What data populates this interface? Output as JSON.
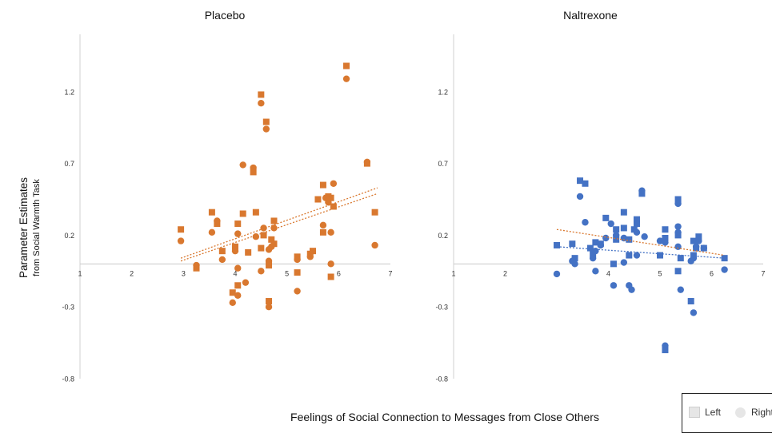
{
  "chart_data": [
    {
      "type": "scatter",
      "title": "Placebo",
      "x_ticks": [
        "1",
        "2",
        "3",
        "4",
        "5",
        "6",
        "7"
      ],
      "y_ticks": [
        "1.2",
        "0.7",
        "0.2",
        "-0.3",
        "-0.8"
      ],
      "xlim": [
        1,
        7
      ],
      "ylim": [
        -0.8,
        1.6
      ],
      "series": [
        {
          "marker": "square",
          "color": "#d9782f",
          "points": [
            [
              2.95,
              0.24
            ],
            [
              3.25,
              -0.03
            ],
            [
              3.55,
              0.36
            ],
            [
              3.65,
              0.28
            ],
            [
              3.75,
              0.09
            ],
            [
              3.95,
              -0.2
            ],
            [
              4.0,
              0.12
            ],
            [
              4.05,
              0.28
            ],
            [
              4.05,
              -0.15
            ],
            [
              4.15,
              0.35
            ],
            [
              4.25,
              0.08
            ],
            [
              4.35,
              0.64
            ],
            [
              4.4,
              0.36
            ],
            [
              4.5,
              1.18
            ],
            [
              4.5,
              0.11
            ],
            [
              4.55,
              0.2
            ],
            [
              4.6,
              0.99
            ],
            [
              4.65,
              -0.26
            ],
            [
              4.65,
              -0.01
            ],
            [
              4.7,
              0.17
            ],
            [
              4.75,
              0.14
            ],
            [
              4.75,
              0.3
            ],
            [
              5.2,
              0.05
            ],
            [
              5.2,
              -0.06
            ],
            [
              5.45,
              0.07
            ],
            [
              5.5,
              0.09
            ],
            [
              5.6,
              0.45
            ],
            [
              5.7,
              0.55
            ],
            [
              5.7,
              0.22
            ],
            [
              5.8,
              0.47
            ],
            [
              5.85,
              0.46
            ],
            [
              5.85,
              -0.09
            ],
            [
              5.9,
              0.4
            ],
            [
              6.15,
              1.38
            ],
            [
              6.55,
              0.7
            ],
            [
              6.7,
              0.36
            ]
          ]
        },
        {
          "marker": "circle",
          "color": "#d9782f",
          "points": [
            [
              2.95,
              0.16
            ],
            [
              3.25,
              -0.01
            ],
            [
              3.55,
              0.22
            ],
            [
              3.65,
              0.3
            ],
            [
              3.75,
              0.03
            ],
            [
              3.95,
              -0.27
            ],
            [
              4.0,
              0.09
            ],
            [
              4.05,
              0.21
            ],
            [
              4.05,
              -0.22
            ],
            [
              4.15,
              0.69
            ],
            [
              4.05,
              -0.03
            ],
            [
              4.2,
              -0.13
            ],
            [
              4.35,
              0.67
            ],
            [
              4.4,
              0.19
            ],
            [
              4.5,
              1.12
            ],
            [
              4.5,
              -0.05
            ],
            [
              4.55,
              0.25
            ],
            [
              4.6,
              0.94
            ],
            [
              4.65,
              -0.3
            ],
            [
              4.65,
              0.1
            ],
            [
              4.7,
              0.12
            ],
            [
              4.75,
              0.25
            ],
            [
              4.65,
              0.02
            ],
            [
              5.2,
              0.03
            ],
            [
              5.2,
              -0.19
            ],
            [
              5.45,
              0.05
            ],
            [
              5.7,
              0.27
            ],
            [
              5.75,
              0.46
            ],
            [
              5.8,
              0.43
            ],
            [
              5.85,
              0.22
            ],
            [
              5.9,
              0.56
            ],
            [
              5.85,
              0.0
            ],
            [
              6.15,
              1.29
            ],
            [
              6.55,
              0.71
            ],
            [
              6.7,
              0.13
            ]
          ]
        }
      ],
      "trendlines": [
        {
          "from": [
            2.95,
            0.04
          ],
          "to": [
            6.75,
            0.53
          ],
          "color": "#d9782f"
        },
        {
          "from": [
            2.95,
            0.02
          ],
          "to": [
            6.75,
            0.49
          ],
          "color": "#d9782f"
        }
      ]
    },
    {
      "type": "scatter",
      "title": "Naltrexone",
      "x_ticks": [
        "1",
        "2",
        "3",
        "4",
        "5",
        "6",
        "7"
      ],
      "y_ticks": [
        "1.2",
        "0.7",
        "0.2",
        "-0.3",
        "-0.8"
      ],
      "xlim": [
        1,
        7
      ],
      "ylim": [
        -0.8,
        1.6
      ],
      "series": [
        {
          "marker": "square",
          "color": "#4472c4",
          "points": [
            [
              3.0,
              0.13
            ],
            [
              3.3,
              0.14
            ],
            [
              3.35,
              0.04
            ],
            [
              3.45,
              0.58
            ],
            [
              3.55,
              0.56
            ],
            [
              3.65,
              0.11
            ],
            [
              3.7,
              0.07
            ],
            [
              3.75,
              0.15
            ],
            [
              3.85,
              0.14
            ],
            [
              3.95,
              0.32
            ],
            [
              4.1,
              0.0
            ],
            [
              4.15,
              0.17
            ],
            [
              4.15,
              0.24
            ],
            [
              4.3,
              0.36
            ],
            [
              4.3,
              0.25
            ],
            [
              4.4,
              0.06
            ],
            [
              4.4,
              0.17
            ],
            [
              4.5,
              0.24
            ],
            [
              4.55,
              0.28
            ],
            [
              4.55,
              0.31
            ],
            [
              4.65,
              0.49
            ],
            [
              5.0,
              0.06
            ],
            [
              5.1,
              0.24
            ],
            [
              5.1,
              0.18
            ],
            [
              5.1,
              -0.6
            ],
            [
              5.35,
              0.45
            ],
            [
              5.35,
              0.2
            ],
            [
              5.4,
              0.04
            ],
            [
              5.35,
              -0.05
            ],
            [
              5.6,
              -0.26
            ],
            [
              5.65,
              0.06
            ],
            [
              5.65,
              0.16
            ],
            [
              5.7,
              0.11
            ],
            [
              5.75,
              0.19
            ],
            [
              5.85,
              0.11
            ],
            [
              6.25,
              0.04
            ]
          ]
        },
        {
          "marker": "circle",
          "color": "#4472c4",
          "points": [
            [
              3.0,
              -0.07
            ],
            [
              3.3,
              0.02
            ],
            [
              3.35,
              0.0
            ],
            [
              3.45,
              0.47
            ],
            [
              3.55,
              0.29
            ],
            [
              3.7,
              0.04
            ],
            [
              3.75,
              0.09
            ],
            [
              3.75,
              -0.05
            ],
            [
              3.85,
              0.13
            ],
            [
              3.95,
              0.18
            ],
            [
              4.05,
              0.28
            ],
            [
              4.1,
              -0.15
            ],
            [
              4.15,
              0.2
            ],
            [
              4.3,
              0.18
            ],
            [
              4.3,
              0.01
            ],
            [
              4.4,
              -0.15
            ],
            [
              4.45,
              -0.18
            ],
            [
              4.55,
              0.06
            ],
            [
              4.55,
              0.22
            ],
            [
              4.65,
              0.51
            ],
            [
              4.7,
              0.19
            ],
            [
              5.0,
              0.16
            ],
            [
              5.1,
              0.15
            ],
            [
              5.1,
              -0.57
            ],
            [
              5.35,
              0.26
            ],
            [
              5.35,
              0.22
            ],
            [
              5.35,
              0.42
            ],
            [
              5.4,
              -0.18
            ],
            [
              5.35,
              0.12
            ],
            [
              5.6,
              0.02
            ],
            [
              5.65,
              -0.34
            ],
            [
              5.65,
              0.04
            ],
            [
              5.7,
              0.12
            ],
            [
              5.75,
              0.16
            ],
            [
              5.85,
              0.11
            ],
            [
              6.25,
              -0.04
            ]
          ]
        }
      ],
      "trendlines": [
        {
          "from": [
            3.0,
            0.24
          ],
          "to": [
            6.25,
            0.06
          ],
          "color": "#d9782f"
        },
        {
          "from": [
            3.0,
            0.12
          ],
          "to": [
            6.25,
            0.04
          ],
          "color": "#4472c4"
        }
      ]
    }
  ],
  "ylabel_main": "Parameter Estimates",
  "ylabel_sub": "from Social Warmth Task",
  "xlabel": "Feelings of Social Connection to Messages from Close Others",
  "legend": {
    "left": "Left",
    "right": "Right"
  }
}
